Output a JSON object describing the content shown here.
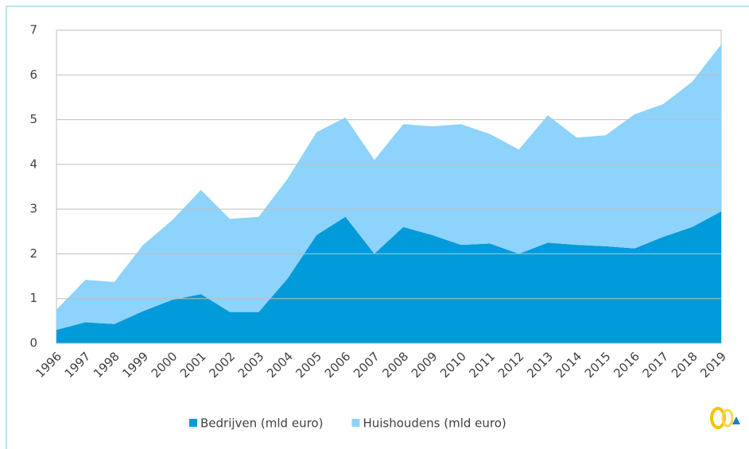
{
  "chart_data": {
    "type": "stacked_area",
    "categories": [
      "1996",
      "1997",
      "1998",
      "1999",
      "2000",
      "2001",
      "2002",
      "2003",
      "2004",
      "2005",
      "2006",
      "2007",
      "2008",
      "2009",
      "2010",
      "2011",
      "2012",
      "2013",
      "2014",
      "2015",
      "2016",
      "2017",
      "2018",
      "2019"
    ],
    "series": [
      {
        "name": "Bedrijven (mld euro)",
        "color": "#009bd8",
        "values": [
          0.3,
          0.47,
          0.43,
          0.72,
          0.97,
          1.1,
          0.7,
          0.7,
          1.45,
          2.42,
          2.83,
          2.0,
          2.6,
          2.42,
          2.2,
          2.23,
          2.0,
          2.25,
          2.2,
          2.17,
          2.12,
          2.38,
          2.6,
          2.95
        ]
      },
      {
        "name": "Huishoudens (mld euro)",
        "color": "#8dd3fb",
        "values": [
          0.45,
          0.95,
          0.94,
          1.48,
          1.78,
          2.33,
          2.08,
          2.13,
          2.23,
          2.3,
          2.22,
          2.1,
          2.3,
          2.43,
          2.7,
          2.45,
          2.33,
          2.85,
          2.4,
          2.48,
          3.0,
          2.97,
          3.25,
          3.73
        ]
      }
    ],
    "ylim": [
      0,
      7
    ],
    "yticks": [
      0,
      1,
      2,
      3,
      4,
      5,
      6,
      7
    ],
    "grid": true,
    "legend": "bottom"
  }
}
